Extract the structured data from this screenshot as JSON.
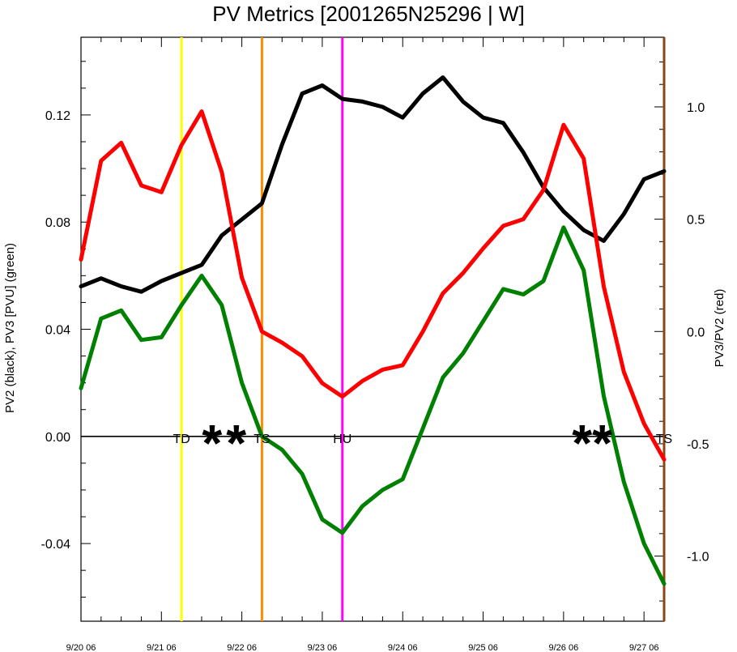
{
  "chart_data": {
    "type": "line",
    "title": "PV Metrics [2001265N25296 | W]",
    "ylabel_left": "PV2 (black), PV3 [PVU] (green)",
    "ylabel_right": "PV3/PV2 (red)",
    "ylim_left": [
      -0.069,
      0.149
    ],
    "ylim_right": [
      -1.29,
      1.31
    ],
    "y_ticks_left": [
      -0.04,
      0.0,
      0.04,
      0.08,
      0.12
    ],
    "y_tick_labels_left": [
      "-0.04",
      "0.00",
      "0.04",
      "0.08",
      "0.12"
    ],
    "y_ticks_right": [
      -1.0,
      -0.5,
      0.0,
      0.5,
      1.0
    ],
    "y_tick_labels_right": [
      "-1.0",
      "-0.5",
      "0.0",
      "0.5",
      "1.0"
    ],
    "x_axis": "time in days since 9/20 06",
    "xlim": [
      0,
      7.25
    ],
    "x_ticks": [
      0,
      1,
      2,
      3,
      4,
      5,
      6,
      7
    ],
    "x_tick_labels": [
      "9/20 06",
      "9/21 06",
      "9/22 06",
      "9/23 06",
      "9/24 06",
      "9/25 06",
      "9/26 06",
      "9/27 06"
    ],
    "x": [
      0,
      0.25,
      0.5,
      0.75,
      1.0,
      1.25,
      1.5,
      1.75,
      2.0,
      2.25,
      2.5,
      2.75,
      3.0,
      3.25,
      3.5,
      3.75,
      4.0,
      4.25,
      4.5,
      4.75,
      5.0,
      5.25,
      5.5,
      5.75,
      6.0,
      6.25,
      6.5,
      6.75,
      7.0,
      7.25
    ],
    "series": [
      {
        "name": "PV2",
        "color": "#000000",
        "axis": "left",
        "values": [
          0.056,
          0.059,
          0.056,
          0.054,
          0.058,
          0.061,
          0.064,
          0.075,
          0.081,
          0.087,
          0.109,
          0.128,
          0.131,
          0.126,
          0.125,
          0.123,
          0.119,
          0.128,
          0.134,
          0.125,
          0.119,
          0.117,
          0.106,
          0.093,
          0.084,
          0.077,
          0.073,
          0.083,
          0.096,
          0.099
        ]
      },
      {
        "name": "PV3",
        "color": "#008000",
        "axis": "left",
        "values": [
          0.018,
          0.044,
          0.047,
          0.036,
          0.037,
          0.049,
          0.06,
          0.049,
          0.02,
          0.0,
          -0.005,
          -0.014,
          -0.031,
          -0.036,
          -0.026,
          -0.02,
          -0.016,
          0.003,
          0.022,
          0.031,
          0.043,
          0.055,
          0.053,
          0.058,
          0.078,
          0.062,
          0.015,
          -0.017,
          -0.04,
          -0.055
        ]
      },
      {
        "name": "PV3/PV2",
        "color": "#ff0000",
        "axis": "right",
        "values": [
          0.32,
          0.76,
          0.84,
          0.65,
          0.62,
          0.83,
          0.98,
          0.71,
          0.24,
          0.0,
          -0.05,
          -0.11,
          -0.23,
          -0.29,
          -0.22,
          -0.17,
          -0.15,
          0.0,
          0.17,
          0.26,
          0.37,
          0.47,
          0.5,
          0.63,
          0.92,
          0.77,
          0.2,
          -0.18,
          -0.41,
          -0.57
        ]
      }
    ],
    "vertical_lines": [
      {
        "x": 1.25,
        "color": "#ffff00",
        "label": "TD"
      },
      {
        "x": 2.25,
        "color": "#ff8c00",
        "label": "TS"
      },
      {
        "x": 3.25,
        "color": "#ff00ff",
        "label": "HU"
      },
      {
        "x": 7.25,
        "color": "#8b4513",
        "label": "TS"
      }
    ],
    "markers": [
      {
        "symbol": "*",
        "x": 1.63
      },
      {
        "symbol": "*",
        "x": 1.93
      },
      {
        "symbol": "*",
        "x": 6.23
      },
      {
        "symbol": "*",
        "x": 6.48
      }
    ],
    "zero_line": 0,
    "grid": false,
    "legend": "none"
  }
}
